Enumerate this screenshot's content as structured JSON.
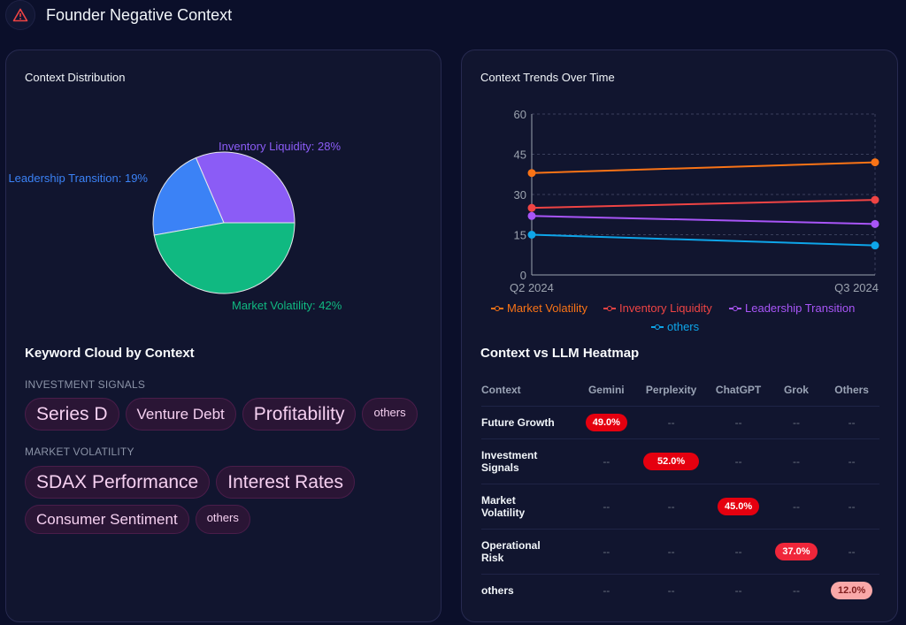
{
  "header": {
    "title": "Founder Negative Context",
    "icon": "warning-icon"
  },
  "distribution": {
    "title": "Context Distribution"
  },
  "trends": {
    "title": "Context Trends Over Time"
  },
  "keyword_cloud": {
    "title": "Keyword Cloud by Context",
    "groups": [
      {
        "label": "INVESTMENT SIGNALS",
        "tags": [
          "Series D",
          "Venture Debt",
          "Profitability",
          "others"
        ]
      },
      {
        "label": "MARKET VOLATILITY",
        "tags": [
          "SDAX Performance",
          "Interest Rates",
          "Consumer Sentiment",
          "others"
        ]
      }
    ]
  },
  "heatmap": {
    "title": "Context vs LLM Heatmap",
    "columns": [
      "Context",
      "Gemini",
      "Perplexity",
      "ChatGPT",
      "Grok",
      "Others"
    ],
    "rows": [
      {
        "label": "Future Growth",
        "cells": [
          "49.0%",
          "--",
          "--",
          "--",
          "--"
        ]
      },
      {
        "label": "Investment Signals",
        "cells": [
          "--",
          "52.0%",
          "--",
          "--",
          "--"
        ]
      },
      {
        "label": "Market Volatility",
        "cells": [
          "--",
          "--",
          "45.0%",
          "--",
          "--"
        ]
      },
      {
        "label": "Operational Risk",
        "cells": [
          "--",
          "--",
          "--",
          "37.0%",
          "--"
        ]
      },
      {
        "label": "others",
        "cells": [
          "--",
          "--",
          "--",
          "--",
          "12.0%"
        ]
      }
    ]
  },
  "chart_data": [
    {
      "type": "pie",
      "title": "Context Distribution",
      "slices": [
        {
          "name": "Inventory Liquidity",
          "value": 28,
          "label": "Inventory Liquidity: 28%",
          "color": "#8b5cf6"
        },
        {
          "name": "Leadership Transition",
          "value": 19,
          "label": "Leadership Transition: 19%",
          "color": "#3b82f6"
        },
        {
          "name": "Market Volatility",
          "value": 42,
          "label": "Market Volatility: 42%",
          "color": "#10b981"
        }
      ]
    },
    {
      "type": "line",
      "title": "Context Trends Over Time",
      "x": [
        "Q2 2024",
        "Q3 2024"
      ],
      "ylim": [
        0,
        60
      ],
      "yticks": [
        0,
        15,
        30,
        45,
        60
      ],
      "grid": true,
      "legend": "bottom",
      "series": [
        {
          "name": "Market Volatility",
          "values": [
            38,
            42
          ],
          "color": "#f97316"
        },
        {
          "name": "Inventory Liquidity",
          "values": [
            25,
            28
          ],
          "color": "#ef4444"
        },
        {
          "name": "Leadership Transition",
          "values": [
            22,
            19
          ],
          "color": "#a855f7"
        },
        {
          "name": "others",
          "values": [
            15,
            11
          ],
          "color": "#0ea5e9"
        }
      ]
    }
  ]
}
